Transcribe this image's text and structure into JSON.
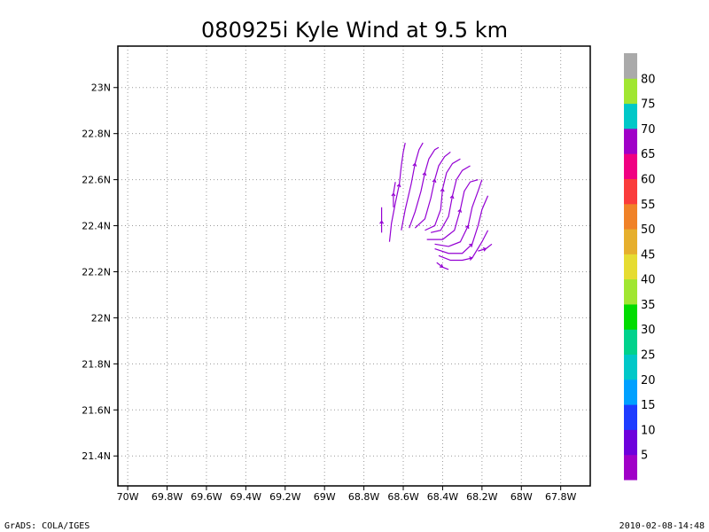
{
  "chart_data": {
    "type": "streamline",
    "title": "080925i Kyle Wind at 9.5 km",
    "xlabel": "",
    "ylabel": "",
    "xlim": [
      -70.05,
      -67.65
    ],
    "ylim": [
      21.27,
      23.18
    ],
    "x_ticks": [
      {
        "value": -70.0,
        "label": "70W"
      },
      {
        "value": -69.8,
        "label": "69.8W"
      },
      {
        "value": -69.6,
        "label": "69.6W"
      },
      {
        "value": -69.4,
        "label": "69.4W"
      },
      {
        "value": -69.2,
        "label": "69.2W"
      },
      {
        "value": -69.0,
        "label": "69W"
      },
      {
        "value": -68.8,
        "label": "68.8W"
      },
      {
        "value": -68.6,
        "label": "68.6W"
      },
      {
        "value": -68.4,
        "label": "68.4W"
      },
      {
        "value": -68.2,
        "label": "68.2W"
      },
      {
        "value": -68.0,
        "label": "68W"
      },
      {
        "value": -67.8,
        "label": "67.8W"
      }
    ],
    "y_ticks": [
      {
        "value": 23.0,
        "label": "23N"
      },
      {
        "value": 22.8,
        "label": "22.8N"
      },
      {
        "value": 22.6,
        "label": "22.6N"
      },
      {
        "value": 22.4,
        "label": "22.4N"
      },
      {
        "value": 22.2,
        "label": "22.2N"
      },
      {
        "value": 22.0,
        "label": "22N"
      },
      {
        "value": 21.8,
        "label": "21.8N"
      },
      {
        "value": 21.6,
        "label": "21.6N"
      },
      {
        "value": 21.4,
        "label": "21.4N"
      }
    ],
    "grid": true,
    "colorbar": {
      "placement": "right",
      "colors": [
        "#a000c8",
        "#6e00dc",
        "#1e3cff",
        "#00a0ff",
        "#00c8c8",
        "#00d28c",
        "#00dc00",
        "#a0e632",
        "#e6dc32",
        "#e6af2d",
        "#f08228",
        "#fa3c3c",
        "#f00082",
        "#a000c8",
        "#00c8c8",
        "#a0e632",
        "#aaaaaa"
      ],
      "labels": [
        "5",
        "10",
        "15",
        "20",
        "25",
        "30",
        "35",
        "40",
        "45",
        "50",
        "55",
        "60",
        "65",
        "70",
        "75",
        "80"
      ]
    },
    "streamline_color": "#9400d3",
    "streamlines": [
      [
        [
          -68.71,
          22.37
        ],
        [
          -68.71,
          22.42
        ],
        [
          -68.71,
          22.48
        ]
      ],
      [
        [
          -68.67,
          22.33
        ],
        [
          -68.66,
          22.41
        ],
        [
          -68.64,
          22.5
        ],
        [
          -68.62,
          22.58
        ],
        [
          -68.61,
          22.66
        ],
        [
          -68.6,
          22.72
        ],
        [
          -68.59,
          22.76
        ]
      ],
      [
        [
          -68.65,
          22.48
        ],
        [
          -68.65,
          22.54
        ],
        [
          -68.64,
          22.59
        ]
      ],
      [
        [
          -68.61,
          22.38
        ],
        [
          -68.59,
          22.47
        ],
        [
          -68.56,
          22.58
        ],
        [
          -68.54,
          22.67
        ],
        [
          -68.52,
          22.73
        ],
        [
          -68.5,
          22.76
        ]
      ],
      [
        [
          -68.57,
          22.39
        ],
        [
          -68.54,
          22.46
        ],
        [
          -68.51,
          22.55
        ],
        [
          -68.49,
          22.63
        ],
        [
          -68.47,
          22.69
        ],
        [
          -68.44,
          22.73
        ],
        [
          -68.42,
          22.74
        ]
      ],
      [
        [
          -68.54,
          22.39
        ],
        [
          -68.49,
          22.43
        ],
        [
          -68.46,
          22.52
        ],
        [
          -68.44,
          22.6
        ],
        [
          -68.42,
          22.66
        ],
        [
          -68.39,
          22.7
        ],
        [
          -68.36,
          22.72
        ]
      ],
      [
        [
          -68.49,
          22.38
        ],
        [
          -68.44,
          22.4
        ],
        [
          -68.41,
          22.47
        ],
        [
          -68.4,
          22.56
        ],
        [
          -68.38,
          22.63
        ],
        [
          -68.35,
          22.67
        ],
        [
          -68.31,
          22.69
        ]
      ],
      [
        [
          -68.46,
          22.37
        ],
        [
          -68.41,
          22.38
        ],
        [
          -68.37,
          22.44
        ],
        [
          -68.35,
          22.53
        ],
        [
          -68.33,
          22.6
        ],
        [
          -68.3,
          22.64
        ],
        [
          -68.26,
          22.66
        ]
      ],
      [
        [
          -68.48,
          22.34
        ],
        [
          -68.4,
          22.34
        ],
        [
          -68.34,
          22.38
        ],
        [
          -68.31,
          22.47
        ],
        [
          -68.29,
          22.55
        ],
        [
          -68.26,
          22.59
        ],
        [
          -68.22,
          22.6
        ]
      ],
      [
        [
          -68.44,
          22.32
        ],
        [
          -68.37,
          22.31
        ],
        [
          -68.31,
          22.33
        ],
        [
          -68.27,
          22.4
        ],
        [
          -68.25,
          22.48
        ],
        [
          -68.22,
          22.55
        ],
        [
          -68.2,
          22.6
        ]
      ],
      [
        [
          -68.44,
          22.3
        ],
        [
          -68.37,
          22.28
        ],
        [
          -68.3,
          22.28
        ],
        [
          -68.25,
          22.32
        ],
        [
          -68.22,
          22.4
        ],
        [
          -68.2,
          22.47
        ],
        [
          -68.17,
          22.53
        ]
      ],
      [
        [
          -68.42,
          22.27
        ],
        [
          -68.36,
          22.25
        ],
        [
          -68.3,
          22.25
        ],
        [
          -68.25,
          22.26
        ],
        [
          -68.2,
          22.33
        ],
        [
          -68.17,
          22.38
        ]
      ],
      [
        [
          -68.43,
          22.24
        ],
        [
          -68.4,
          22.22
        ],
        [
          -68.37,
          22.21
        ]
      ],
      [
        [
          -68.22,
          22.29
        ],
        [
          -68.18,
          22.3
        ],
        [
          -68.15,
          22.32
        ]
      ]
    ]
  },
  "footer": {
    "left": "GrADS: COLA/IGES",
    "right": "2010-02-08-14:48"
  }
}
